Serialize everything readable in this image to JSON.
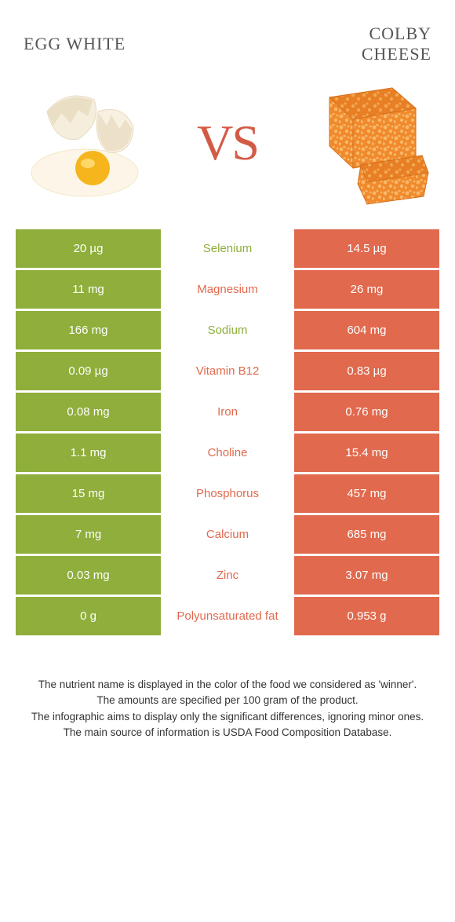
{
  "colors": {
    "left": "#8fae3b",
    "right": "#e1694d",
    "label_left": "#8fae3b",
    "label_right": "#e1694d",
    "title": "#555555",
    "vs": "#d35b45",
    "footer_text": "#333333"
  },
  "header": {
    "left_title": "Egg white",
    "right_title": "Colby\nCheese",
    "vs": "VS"
  },
  "rows": [
    {
      "left": "20 µg",
      "label": "Selenium",
      "right": "14.5 µg",
      "winner": "left"
    },
    {
      "left": "11 mg",
      "label": "Magnesium",
      "right": "26 mg",
      "winner": "right"
    },
    {
      "left": "166 mg",
      "label": "Sodium",
      "right": "604 mg",
      "winner": "left"
    },
    {
      "left": "0.09 µg",
      "label": "Vitamin B12",
      "right": "0.83 µg",
      "winner": "right"
    },
    {
      "left": "0.08 mg",
      "label": "Iron",
      "right": "0.76 mg",
      "winner": "right"
    },
    {
      "left": "1.1 mg",
      "label": "Choline",
      "right": "15.4 mg",
      "winner": "right"
    },
    {
      "left": "15 mg",
      "label": "Phosphorus",
      "right": "457 mg",
      "winner": "right"
    },
    {
      "left": "7 mg",
      "label": "Calcium",
      "right": "685 mg",
      "winner": "right"
    },
    {
      "left": "0.03 mg",
      "label": "Zinc",
      "right": "3.07 mg",
      "winner": "right"
    },
    {
      "left": "0 g",
      "label": "Polyunsaturated fat",
      "right": "0.953 g",
      "winner": "right"
    }
  ],
  "footer": {
    "line1": "The nutrient name is displayed in the color of the food we considered as 'winner'.",
    "line2": "The amounts are specified per 100 gram of the product.",
    "line3": "The infographic aims to display only the significant differences, ignoring minor ones.",
    "line4": "The main source of information is USDA Food Composition Database."
  }
}
